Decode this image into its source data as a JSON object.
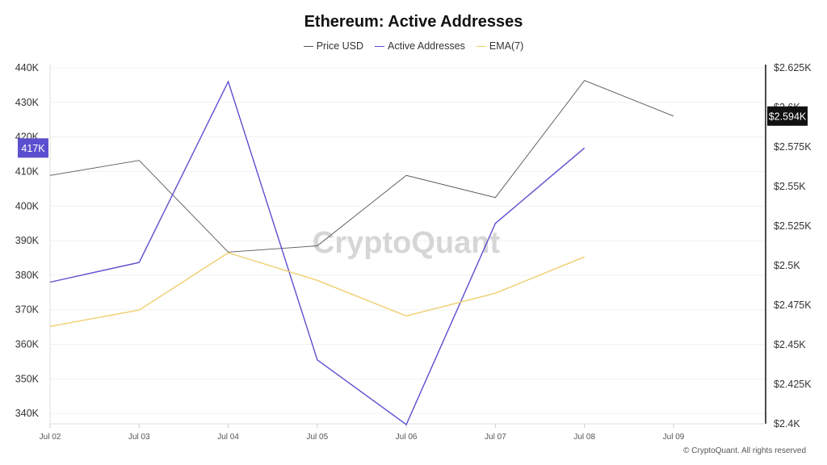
{
  "chart_data": {
    "type": "line",
    "title": "Ethereum: Active Addresses",
    "x": [
      "Jul 02",
      "Jul 03",
      "Jul 04",
      "Jul 05",
      "Jul 06",
      "Jul 07",
      "Jul 08",
      "Jul 09"
    ],
    "series": [
      {
        "name": "Price USD",
        "axis": "right",
        "color": "#555555",
        "values": [
          2.557,
          2.5665,
          2.5085,
          2.5125,
          2.557,
          2.543,
          2.617,
          2.5945
        ]
      },
      {
        "name": "Active Addresses",
        "axis": "left",
        "color": "#5b4fcf",
        "values": [
          378000,
          383700,
          436000,
          355500,
          336800,
          395000,
          416800,
          null
        ]
      },
      {
        "name": "EMA(7)",
        "axis": "left",
        "color": "#f0cf70",
        "values": [
          365200,
          369900,
          386500,
          378500,
          368200,
          374800,
          385300,
          null
        ]
      }
    ],
    "y_left": {
      "ylim": [
        337000,
        440000
      ],
      "ticks": [
        340000,
        350000,
        360000,
        370000,
        380000,
        390000,
        400000,
        410000,
        420000,
        430000,
        440000
      ],
      "tick_labels": [
        "340K",
        "350K",
        "360K",
        "370K",
        "380K",
        "390K",
        "400K",
        "410K",
        "420K",
        "430K",
        "440K"
      ]
    },
    "y_right": {
      "ylim": [
        2.4,
        2.625
      ],
      "ticks": [
        2.4,
        2.425,
        2.45,
        2.475,
        2.5,
        2.525,
        2.55,
        2.575,
        2.6,
        2.625
      ],
      "tick_labels": [
        "$2.4K",
        "$2.425K",
        "$2.45K",
        "$2.475K",
        "$2.5K",
        "$2.525K",
        "$2.55K",
        "$2.575K",
        "$2.6K",
        "$2.625K"
      ]
    },
    "badges": {
      "left": {
        "label": "417K",
        "value": 416800,
        "color": "#5b4fcf"
      },
      "right": {
        "label": "$2.594K",
        "value": 2.5945,
        "color": "#111111"
      }
    },
    "watermark": "CryptoQuant",
    "legend_position": "top-center",
    "grid": true
  },
  "footer": {
    "copyright": "© CryptoQuant. All rights reserved"
  }
}
